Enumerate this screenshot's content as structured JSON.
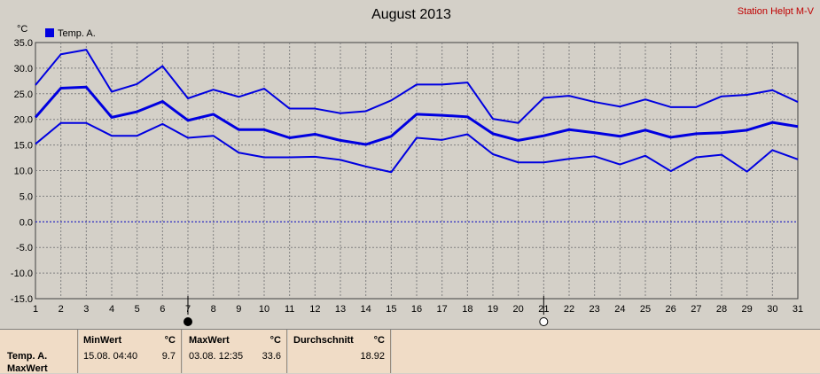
{
  "chart_data": {
    "type": "line",
    "title": "August 2013",
    "station": "Station Helpt M-V",
    "ylabel": "°C",
    "ylim": [
      -15,
      35
    ],
    "yticks": [
      "35.0",
      "30.0",
      "25.0",
      "20.0",
      "15.0",
      "10.0",
      "5.0",
      "0.0",
      "-5.0",
      "-10.0",
      "-15.0"
    ],
    "x": [
      1,
      2,
      3,
      4,
      5,
      6,
      7,
      8,
      9,
      10,
      11,
      12,
      13,
      14,
      15,
      16,
      17,
      18,
      19,
      20,
      21,
      22,
      23,
      24,
      25,
      26,
      27,
      28,
      29,
      30,
      31
    ],
    "legend": "Temp. A.",
    "series": [
      {
        "key": "max",
        "values": [
          26.7,
          32.7,
          33.6,
          25.4,
          26.9,
          30.4,
          24.1,
          25.8,
          24.4,
          26.0,
          22.1,
          22.1,
          21.2,
          21.6,
          23.7,
          26.8,
          26.8,
          27.2,
          20.1,
          19.3,
          24.2,
          24.6,
          23.4,
          22.5,
          23.9,
          22.4,
          22.4,
          24.5,
          24.8,
          25.7,
          23.4
        ]
      },
      {
        "key": "mean",
        "values": [
          20.4,
          26.1,
          26.3,
          20.4,
          21.5,
          23.5,
          19.8,
          21.0,
          18.0,
          18.0,
          16.4,
          17.1,
          15.9,
          15.1,
          16.7,
          21.0,
          20.8,
          20.5,
          17.2,
          15.9,
          16.8,
          18.0,
          17.4,
          16.7,
          17.9,
          16.5,
          17.2,
          17.4,
          17.9,
          19.4,
          18.6
        ]
      },
      {
        "key": "min",
        "values": [
          15.2,
          19.3,
          19.3,
          16.8,
          16.8,
          19.1,
          16.4,
          16.8,
          13.5,
          12.6,
          12.6,
          12.7,
          12.1,
          10.8,
          9.7,
          16.4,
          16.0,
          17.1,
          13.2,
          11.6,
          11.6,
          12.3,
          12.8,
          11.2,
          12.9,
          9.9,
          12.6,
          13.1,
          9.8,
          14.0,
          12.2
        ]
      }
    ],
    "markers": [
      {
        "day": 7,
        "type": "filled"
      },
      {
        "day": 21,
        "type": "open"
      }
    ],
    "grid": true
  },
  "stats": {
    "name": "Temp. A.",
    "name2": "MaxWert",
    "min_header": "MinWert",
    "min_unit": "°C",
    "min_time": "15.08.  04:40",
    "min_value": "9.7",
    "max_header": "MaxWert",
    "max_unit": "°C",
    "max_time": "03.08.  12:35",
    "max_value": "33.6",
    "avg_header": "Durchschnitt",
    "avg_unit": "°C",
    "avg_value": "18.92"
  },
  "colors": {
    "line": "#0000e0",
    "grid": "#808080",
    "zero": "#0000c0",
    "station": "#c00000"
  }
}
